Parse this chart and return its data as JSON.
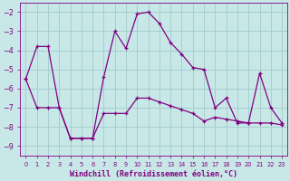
{
  "line1_x": [
    0,
    1,
    2,
    3,
    4,
    5,
    6,
    7,
    8,
    9,
    10,
    11,
    12,
    13,
    14,
    15,
    16,
    17,
    18,
    19,
    20,
    21,
    22,
    23
  ],
  "line1_y": [
    -5.5,
    -3.8,
    -3.8,
    -7.0,
    -8.6,
    -8.6,
    -8.6,
    -5.4,
    -3.0,
    -3.9,
    -2.1,
    -2.0,
    -2.6,
    -3.6,
    -4.2,
    -4.9,
    -5.0,
    -7.0,
    -6.5,
    -7.8,
    -7.8,
    -5.2,
    -7.0,
    -7.8
  ],
  "line2_x": [
    0,
    1,
    2,
    3,
    4,
    5,
    6,
    7,
    8,
    9,
    10,
    11,
    12,
    13,
    14,
    15,
    16,
    17,
    18,
    19,
    20,
    21,
    22,
    23
  ],
  "line2_y": [
    -5.5,
    -7.0,
    -7.0,
    -7.0,
    -8.6,
    -8.6,
    -8.6,
    -7.3,
    -7.3,
    -7.3,
    -6.5,
    -6.5,
    -6.7,
    -6.9,
    -7.1,
    -7.3,
    -7.7,
    -7.5,
    -7.6,
    -7.7,
    -7.8,
    -7.8,
    -7.8,
    -7.9
  ],
  "line_color": "#800080",
  "bg_color": "#c8e8e8",
  "grid_color": "#a8cece",
  "xlabel": "Windchill (Refroidissement éolien,°C)",
  "ylim": [
    -9.5,
    -1.5
  ],
  "xlim": [
    -0.5,
    23.5
  ],
  "yticks": [
    -9,
    -8,
    -7,
    -6,
    -5,
    -4,
    -3,
    -2
  ],
  "xticks": [
    0,
    1,
    2,
    3,
    4,
    5,
    6,
    7,
    8,
    9,
    10,
    11,
    12,
    13,
    14,
    15,
    16,
    17,
    18,
    19,
    20,
    21,
    22,
    23
  ],
  "tick_fontsize": 5.5,
  "xlabel_fontsize": 6.0
}
